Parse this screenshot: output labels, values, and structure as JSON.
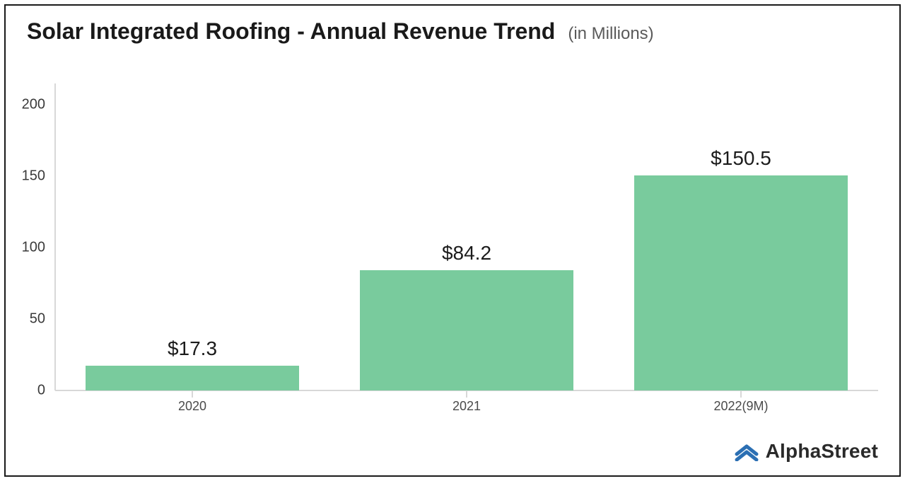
{
  "header": {
    "title": "Solar Integrated Roofing - Annual Revenue Trend",
    "subtitle": "(in Millions)",
    "title_fontsize": 32,
    "subtitle_fontsize": 24,
    "title_color": "#1a1a1a",
    "subtitle_color": "#5a5a5a"
  },
  "chart": {
    "type": "bar",
    "categories": [
      "2020",
      "2021",
      "2022(9M)"
    ],
    "values": [
      17.3,
      84.2,
      150.5
    ],
    "value_labels": [
      "$17.3",
      "$84.2",
      "$150.5"
    ],
    "bar_colors": [
      "#79cb9d",
      "#79cb9d",
      "#79cb9d"
    ],
    "bar_width_pct": 78,
    "background_color": "#ffffff",
    "axis_line_color": "#d8d8d8",
    "ylim": [
      0,
      210
    ],
    "yticks": [
      0,
      50,
      100,
      150,
      200
    ],
    "ytick_fontsize": 20,
    "xtick_fontsize": 18,
    "value_label_fontsize": 28,
    "value_label_color": "#1b1b1b",
    "frame_border_color": "#1a1a1a"
  },
  "brand": {
    "name": "AlphaStreet",
    "icon_name": "alphastreet-logo-icon",
    "icon_color": "#2b6fb3",
    "text_fontsize": 28,
    "text_color": "#2a2a2a"
  }
}
